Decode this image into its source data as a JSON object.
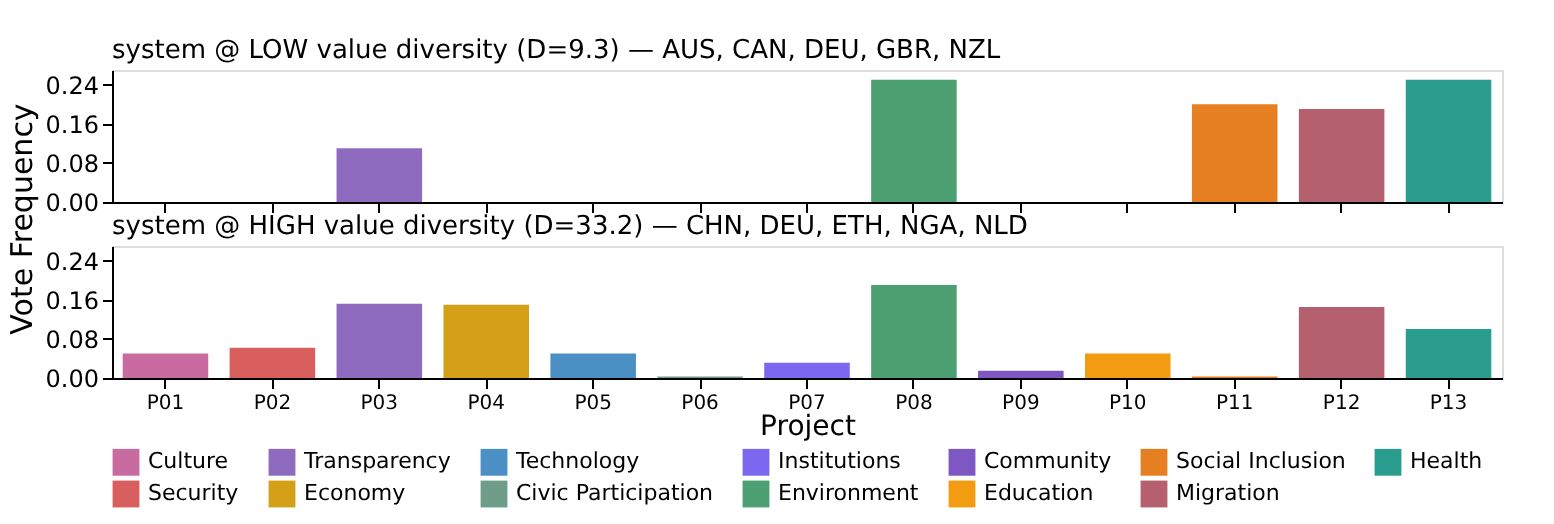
{
  "chart_data": [
    {
      "type": "bar",
      "title": "system @ LOW value diversity (D=9.3)  —  AUS, CAN, DEU, GBR, NZL",
      "categories": [
        null,
        null,
        null,
        null,
        null,
        null,
        null,
        null,
        null,
        null,
        null,
        null,
        null
      ],
      "ylim": [
        0,
        0.27
      ],
      "yticks": [
        {
          "value": 0,
          "label": "0.00"
        },
        0.08,
        0.16,
        0.24
      ],
      "grid": false,
      "series": [
        {
          "color": "#c86ba0",
          "values": [
            0,
            null,
            null,
            null,
            null,
            null,
            null,
            null,
            null,
            null,
            null,
            null,
            null
          ]
        },
        {
          "color": "#d95f5f",
          "values": [
            null,
            0,
            null,
            null,
            null,
            null,
            null,
            null,
            null,
            null,
            null,
            null,
            null
          ]
        },
        {
          "color": "#8e6bbf",
          "values": [
            null,
            null,
            0.11,
            null,
            null,
            null,
            null,
            null,
            null,
            null,
            null,
            null,
            null
          ]
        },
        {
          "color": "#d4a017",
          "values": [
            null,
            null,
            null,
            0,
            null,
            null,
            null,
            null,
            null,
            null,
            null,
            null,
            null
          ]
        },
        {
          "color": "#4a90c4",
          "values": [
            null,
            null,
            null,
            null,
            0,
            null,
            null,
            null,
            null,
            null,
            null,
            null,
            null
          ]
        },
        {
          "color": "#6e9e8a",
          "values": [
            null,
            null,
            null,
            null,
            null,
            0,
            null,
            null,
            null,
            null,
            null,
            null,
            null
          ]
        },
        {
          "color": "#7b68ee",
          "values": [
            null,
            null,
            null,
            null,
            null,
            null,
            0,
            null,
            null,
            null,
            null,
            null,
            null
          ]
        },
        {
          "color": "#4c9f70",
          "values": [
            null,
            null,
            null,
            null,
            null,
            null,
            null,
            0.25,
            null,
            null,
            null,
            null,
            null
          ]
        },
        {
          "color": "#7e57c2",
          "values": [
            null,
            null,
            null,
            null,
            null,
            null,
            null,
            null,
            0,
            null,
            null,
            null,
            null
          ]
        },
        {
          "color": "#f39c12",
          "values": [
            null,
            null,
            null,
            null,
            null,
            null,
            null,
            null,
            null,
            0,
            null,
            null,
            null
          ]
        },
        {
          "color": "#e67e22",
          "values": [
            null,
            null,
            null,
            null,
            null,
            null,
            null,
            null,
            null,
            null,
            0.2,
            null,
            null
          ]
        },
        {
          "color": "#b5606f",
          "values": [
            null,
            null,
            null,
            null,
            null,
            null,
            null,
            null,
            null,
            null,
            null,
            0.19,
            null
          ]
        },
        {
          "color": "#2a9d8f",
          "values": [
            null,
            null,
            null,
            null,
            null,
            null,
            null,
            null,
            null,
            null,
            null,
            null,
            0.25
          ]
        }
      ]
    },
    {
      "type": "bar",
      "title": "system @ HIGH value diversity (D=33.2)  —  CHN, DEU, ETH, NGA, NLD",
      "xlabel": "Project",
      "ylabel": "Vote Frequency",
      "categories": [
        "P01",
        "P02",
        "P03",
        "P04",
        "P05",
        "P06",
        "P07",
        "P08",
        "P09",
        "P10",
        "P11",
        "P12",
        "P13"
      ],
      "ylim": [
        0,
        0.27
      ],
      "yticks": [
        {
          "value": 0,
          "label": "0.00"
        },
        0.08,
        0.16,
        0.24
      ],
      "grid": false,
      "legend": "bottom",
      "series": [
        {
          "name": "Culture",
          "color": "#c86ba0",
          "values": [
            0.05,
            null,
            null,
            null,
            null,
            null,
            null,
            null,
            null,
            null,
            null,
            null,
            null
          ]
        },
        {
          "name": "Security",
          "color": "#d95f5f",
          "values": [
            null,
            0.062,
            null,
            null,
            null,
            null,
            null,
            null,
            null,
            null,
            null,
            null,
            null
          ]
        },
        {
          "name": "Transparency",
          "color": "#8e6bbf",
          "values": [
            null,
            null,
            0.152,
            null,
            null,
            null,
            null,
            null,
            null,
            null,
            null,
            null,
            null
          ]
        },
        {
          "name": "Economy",
          "color": "#d4a017",
          "values": [
            null,
            null,
            null,
            0.15,
            null,
            null,
            null,
            null,
            null,
            null,
            null,
            null,
            null
          ]
        },
        {
          "name": "Technology",
          "color": "#4a90c4",
          "values": [
            null,
            null,
            null,
            null,
            0.05,
            null,
            null,
            null,
            null,
            null,
            null,
            null,
            null
          ]
        },
        {
          "name": "Civic Participation",
          "color": "#6e9e8a",
          "values": [
            null,
            null,
            null,
            null,
            null,
            0.003,
            null,
            null,
            null,
            null,
            null,
            null,
            null
          ]
        },
        {
          "name": "Institutions",
          "color": "#7b68ee",
          "values": [
            null,
            null,
            null,
            null,
            null,
            null,
            0.031,
            null,
            null,
            null,
            null,
            null,
            null
          ]
        },
        {
          "name": "Environment",
          "color": "#4c9f70",
          "values": [
            null,
            null,
            null,
            null,
            null,
            null,
            null,
            0.19,
            null,
            null,
            null,
            null,
            null
          ]
        },
        {
          "name": "Community",
          "color": "#7e57c2",
          "values": [
            null,
            null,
            null,
            null,
            null,
            null,
            null,
            null,
            0.015,
            null,
            null,
            null,
            null
          ]
        },
        {
          "name": "Education",
          "color": "#f39c12",
          "values": [
            null,
            null,
            null,
            null,
            null,
            null,
            null,
            null,
            null,
            0.05,
            null,
            null,
            null
          ]
        },
        {
          "name": "Social Inclusion",
          "color": "#e67e22",
          "values": [
            null,
            null,
            null,
            null,
            null,
            null,
            null,
            null,
            null,
            null,
            0.003,
            null,
            null
          ]
        },
        {
          "name": "Migration",
          "color": "#b5606f",
          "values": [
            null,
            null,
            null,
            null,
            null,
            null,
            null,
            null,
            null,
            null,
            null,
            0.145,
            null
          ]
        },
        {
          "name": "Health",
          "color": "#2a9d8f",
          "values": [
            null,
            null,
            null,
            null,
            null,
            null,
            null,
            null,
            null,
            null,
            null,
            null,
            0.1
          ]
        }
      ]
    }
  ]
}
